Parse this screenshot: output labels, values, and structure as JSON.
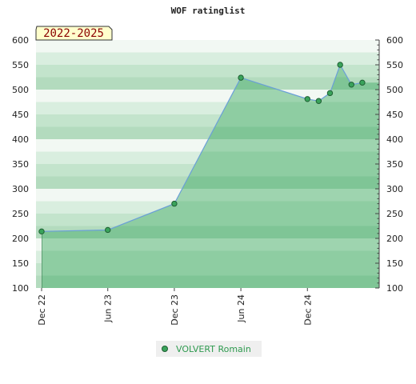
{
  "chart_data": {
    "type": "area",
    "title": "WOF ratinglist",
    "period_badge": "2022-2025",
    "xlabel": "",
    "ylabel": "",
    "ylim": [
      100,
      600
    ],
    "y_ticks": [
      100,
      150,
      200,
      250,
      300,
      350,
      400,
      450,
      500,
      550,
      600
    ],
    "x_range": [
      "2022-12-01",
      "2025-06-01"
    ],
    "x_ticks": [
      {
        "date": "2022-12-01",
        "label": "Dec 22"
      },
      {
        "date": "2023-06-01",
        "label": "Jun 23"
      },
      {
        "date": "2023-12-01",
        "label": "Dec 23"
      },
      {
        "date": "2024-06-01",
        "label": "Jun 24"
      },
      {
        "date": "2024-12-01",
        "label": "Dec 24"
      }
    ],
    "grid": true,
    "legend_position": "bottom",
    "series": [
      {
        "name": "VOLVERT Romain",
        "points": [
          {
            "x": "2022-12-01",
            "y": 214
          },
          {
            "x": "2023-06-01",
            "y": 217
          },
          {
            "x": "2023-12-01",
            "y": 270
          },
          {
            "x": "2024-06-01",
            "y": 524
          },
          {
            "x": "2024-12-01",
            "y": 481
          },
          {
            "x": "2025-01-01",
            "y": 477
          },
          {
            "x": "2025-02-01",
            "y": 493
          },
          {
            "x": "2025-03-01",
            "y": 550
          },
          {
            "x": "2025-04-01",
            "y": 510
          },
          {
            "x": "2025-05-01",
            "y": 514
          }
        ]
      }
    ]
  },
  "colors": {
    "band_light_1": "#f2f8f3",
    "band_light_2": "#d9eedf",
    "band_light_3": "#c3e4cc",
    "band_light_4": "#b3dbbe",
    "band_dark_1": "#7fc596",
    "band_dark_2": "#8ecda2",
    "band_dark_3": "#9ed4af",
    "line": "#6a9fd8",
    "marker_fill": "#3aa35b",
    "marker_stroke": "#1f5f33",
    "badge_bg": "#ffffcc",
    "badge_text": "#8b0000",
    "legend_bg": "#efefef",
    "legend_text": "#2e9a4f"
  }
}
